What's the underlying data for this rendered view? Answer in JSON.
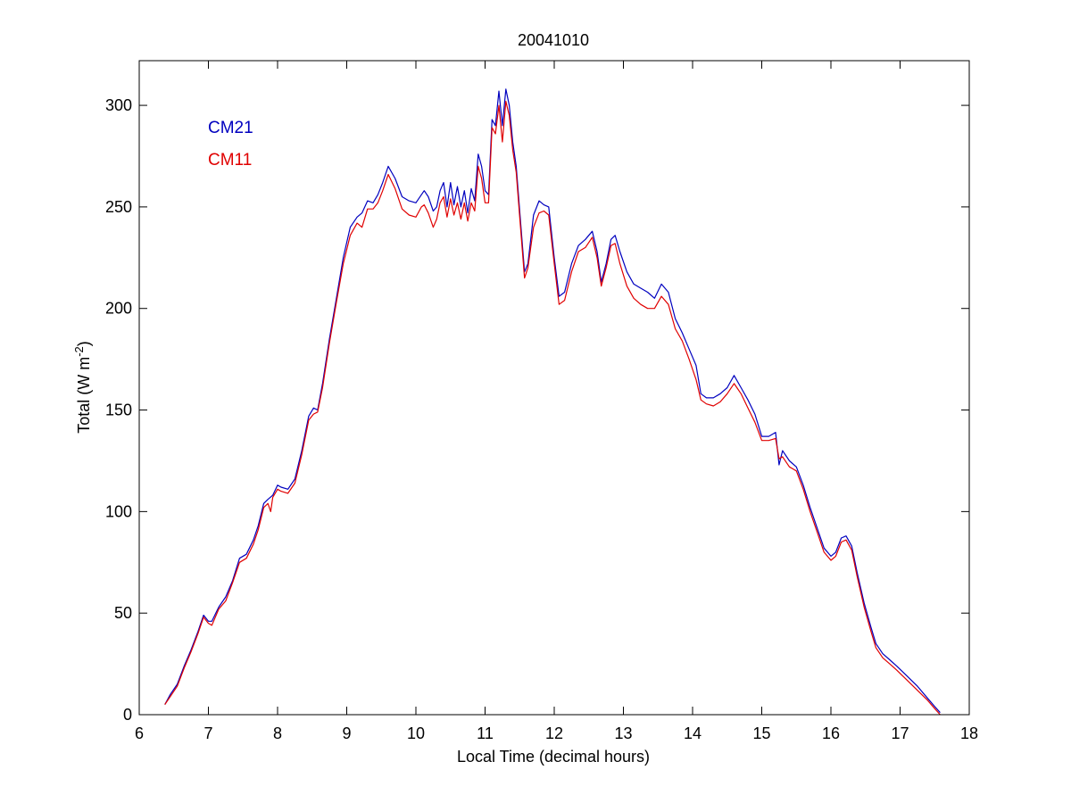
{
  "chart_data": {
    "type": "line",
    "title": "20041010",
    "xlabel": "Local Time (decimal hours)",
    "ylabel": {
      "base": "Total (W m",
      "superscript": "-2",
      "close": ")"
    },
    "xlim": [
      6,
      18
    ],
    "ylim": [
      0,
      322
    ],
    "xticks": [
      6,
      7,
      8,
      9,
      10,
      11,
      12,
      13,
      14,
      15,
      16,
      17,
      18
    ],
    "yticks": [
      0,
      50,
      100,
      150,
      200,
      250,
      300
    ],
    "grid": false,
    "legend_position": "top-left",
    "series": [
      {
        "name": "CM21",
        "color": "#0000bf",
        "points": [
          [
            6.37,
            5
          ],
          [
            6.45,
            10
          ],
          [
            6.55,
            15
          ],
          [
            6.65,
            24
          ],
          [
            6.75,
            32
          ],
          [
            6.85,
            41
          ],
          [
            6.93,
            49
          ],
          [
            7.0,
            46
          ],
          [
            7.05,
            46
          ],
          [
            7.15,
            53
          ],
          [
            7.25,
            58
          ],
          [
            7.35,
            66
          ],
          [
            7.45,
            77
          ],
          [
            7.55,
            79
          ],
          [
            7.65,
            86
          ],
          [
            7.72,
            93
          ],
          [
            7.8,
            104
          ],
          [
            7.86,
            106
          ],
          [
            7.93,
            108
          ],
          [
            8.0,
            113
          ],
          [
            8.05,
            112
          ],
          [
            8.15,
            111
          ],
          [
            8.25,
            116
          ],
          [
            8.35,
            130
          ],
          [
            8.45,
            147
          ],
          [
            8.52,
            151
          ],
          [
            8.58,
            150
          ],
          [
            8.65,
            163
          ],
          [
            8.75,
            185
          ],
          [
            8.85,
            205
          ],
          [
            8.95,
            225
          ],
          [
            9.05,
            240
          ],
          [
            9.15,
            245
          ],
          [
            9.22,
            247
          ],
          [
            9.3,
            253
          ],
          [
            9.38,
            252
          ],
          [
            9.45,
            256
          ],
          [
            9.52,
            262
          ],
          [
            9.6,
            270
          ],
          [
            9.7,
            264
          ],
          [
            9.8,
            255
          ],
          [
            9.9,
            253
          ],
          [
            10.0,
            252
          ],
          [
            10.08,
            256
          ],
          [
            10.12,
            258
          ],
          [
            10.18,
            255
          ],
          [
            10.25,
            248
          ],
          [
            10.3,
            250
          ],
          [
            10.35,
            258
          ],
          [
            10.4,
            262
          ],
          [
            10.45,
            250
          ],
          [
            10.5,
            262
          ],
          [
            10.55,
            251
          ],
          [
            10.6,
            260
          ],
          [
            10.65,
            250
          ],
          [
            10.7,
            258
          ],
          [
            10.75,
            247
          ],
          [
            10.8,
            259
          ],
          [
            10.85,
            253
          ],
          [
            10.9,
            276
          ],
          [
            10.95,
            270
          ],
          [
            11.0,
            258
          ],
          [
            11.05,
            256
          ],
          [
            11.1,
            293
          ],
          [
            11.15,
            290
          ],
          [
            11.2,
            307
          ],
          [
            11.25,
            290
          ],
          [
            11.3,
            308
          ],
          [
            11.35,
            300
          ],
          [
            11.4,
            282
          ],
          [
            11.45,
            270
          ],
          [
            11.5,
            248
          ],
          [
            11.57,
            218
          ],
          [
            11.62,
            222
          ],
          [
            11.7,
            246
          ],
          [
            11.78,
            253
          ],
          [
            11.85,
            251
          ],
          [
            11.92,
            250
          ],
          [
            12.0,
            225
          ],
          [
            12.07,
            206
          ],
          [
            12.15,
            208
          ],
          [
            12.25,
            222
          ],
          [
            12.35,
            231
          ],
          [
            12.45,
            234
          ],
          [
            12.55,
            238
          ],
          [
            12.62,
            228
          ],
          [
            12.68,
            213
          ],
          [
            12.75,
            222
          ],
          [
            12.82,
            234
          ],
          [
            12.88,
            236
          ],
          [
            12.95,
            228
          ],
          [
            13.05,
            218
          ],
          [
            13.15,
            212
          ],
          [
            13.25,
            210
          ],
          [
            13.35,
            208
          ],
          [
            13.45,
            205
          ],
          [
            13.55,
            212
          ],
          [
            13.65,
            208
          ],
          [
            13.75,
            195
          ],
          [
            13.85,
            188
          ],
          [
            13.95,
            180
          ],
          [
            14.05,
            172
          ],
          [
            14.12,
            158
          ],
          [
            14.2,
            156
          ],
          [
            14.3,
            156
          ],
          [
            14.4,
            158
          ],
          [
            14.5,
            161
          ],
          [
            14.6,
            167
          ],
          [
            14.7,
            161
          ],
          [
            14.8,
            155
          ],
          [
            14.9,
            148
          ],
          [
            15.0,
            137
          ],
          [
            15.1,
            137
          ],
          [
            15.2,
            139
          ],
          [
            15.25,
            123
          ],
          [
            15.3,
            130
          ],
          [
            15.4,
            125
          ],
          [
            15.5,
            122
          ],
          [
            15.6,
            113
          ],
          [
            15.7,
            102
          ],
          [
            15.8,
            92
          ],
          [
            15.9,
            82
          ],
          [
            16.0,
            78
          ],
          [
            16.07,
            80
          ],
          [
            16.15,
            87
          ],
          [
            16.22,
            88
          ],
          [
            16.3,
            83
          ],
          [
            16.38,
            70
          ],
          [
            16.48,
            55
          ],
          [
            16.58,
            43
          ],
          [
            16.65,
            35
          ],
          [
            16.75,
            30
          ],
          [
            16.85,
            27
          ],
          [
            16.95,
            24
          ],
          [
            17.1,
            19
          ],
          [
            17.25,
            14
          ],
          [
            17.4,
            8
          ],
          [
            17.5,
            4
          ],
          [
            17.58,
            1
          ]
        ]
      },
      {
        "name": "CM11",
        "color": "#e00000",
        "points": [
          [
            6.37,
            5
          ],
          [
            6.45,
            9
          ],
          [
            6.55,
            14
          ],
          [
            6.65,
            23
          ],
          [
            6.75,
            31
          ],
          [
            6.85,
            40
          ],
          [
            6.93,
            48
          ],
          [
            7.0,
            45
          ],
          [
            7.05,
            44
          ],
          [
            7.15,
            52
          ],
          [
            7.25,
            56
          ],
          [
            7.35,
            65
          ],
          [
            7.45,
            75
          ],
          [
            7.55,
            77
          ],
          [
            7.65,
            84
          ],
          [
            7.72,
            91
          ],
          [
            7.8,
            102
          ],
          [
            7.86,
            104
          ],
          [
            7.9,
            100
          ],
          [
            7.93,
            107
          ],
          [
            8.0,
            111
          ],
          [
            8.05,
            110
          ],
          [
            8.15,
            109
          ],
          [
            8.25,
            114
          ],
          [
            8.35,
            128
          ],
          [
            8.45,
            145
          ],
          [
            8.52,
            148
          ],
          [
            8.58,
            149
          ],
          [
            8.65,
            161
          ],
          [
            8.75,
            183
          ],
          [
            8.85,
            203
          ],
          [
            8.95,
            222
          ],
          [
            9.05,
            236
          ],
          [
            9.15,
            242
          ],
          [
            9.22,
            240
          ],
          [
            9.3,
            249
          ],
          [
            9.38,
            249
          ],
          [
            9.45,
            252
          ],
          [
            9.52,
            258
          ],
          [
            9.6,
            266
          ],
          [
            9.7,
            259
          ],
          [
            9.8,
            249
          ],
          [
            9.9,
            246
          ],
          [
            10.0,
            245
          ],
          [
            10.08,
            250
          ],
          [
            10.12,
            251
          ],
          [
            10.18,
            247
          ],
          [
            10.25,
            240
          ],
          [
            10.3,
            244
          ],
          [
            10.35,
            252
          ],
          [
            10.4,
            255
          ],
          [
            10.45,
            245
          ],
          [
            10.5,
            254
          ],
          [
            10.55,
            246
          ],
          [
            10.6,
            252
          ],
          [
            10.65,
            244
          ],
          [
            10.7,
            252
          ],
          [
            10.75,
            243
          ],
          [
            10.8,
            252
          ],
          [
            10.85,
            248
          ],
          [
            10.9,
            270
          ],
          [
            10.95,
            264
          ],
          [
            11.0,
            252
          ],
          [
            11.05,
            252
          ],
          [
            11.1,
            289
          ],
          [
            11.15,
            286
          ],
          [
            11.2,
            300
          ],
          [
            11.25,
            282
          ],
          [
            11.3,
            302
          ],
          [
            11.35,
            295
          ],
          [
            11.4,
            278
          ],
          [
            11.45,
            267
          ],
          [
            11.5,
            245
          ],
          [
            11.57,
            215
          ],
          [
            11.62,
            220
          ],
          [
            11.7,
            240
          ],
          [
            11.78,
            247
          ],
          [
            11.85,
            248
          ],
          [
            11.92,
            246
          ],
          [
            12.0,
            222
          ],
          [
            12.07,
            202
          ],
          [
            12.15,
            204
          ],
          [
            12.25,
            218
          ],
          [
            12.35,
            228
          ],
          [
            12.45,
            230
          ],
          [
            12.55,
            235
          ],
          [
            12.62,
            225
          ],
          [
            12.68,
            211
          ],
          [
            12.75,
            220
          ],
          [
            12.82,
            231
          ],
          [
            12.88,
            232
          ],
          [
            12.95,
            222
          ],
          [
            13.05,
            211
          ],
          [
            13.15,
            205
          ],
          [
            13.25,
            202
          ],
          [
            13.35,
            200
          ],
          [
            13.45,
            200
          ],
          [
            13.55,
            206
          ],
          [
            13.65,
            202
          ],
          [
            13.75,
            190
          ],
          [
            13.85,
            184
          ],
          [
            13.95,
            175
          ],
          [
            14.05,
            165
          ],
          [
            14.12,
            155
          ],
          [
            14.2,
            153
          ],
          [
            14.3,
            152
          ],
          [
            14.4,
            154
          ],
          [
            14.5,
            158
          ],
          [
            14.6,
            163
          ],
          [
            14.7,
            158
          ],
          [
            14.8,
            151
          ],
          [
            14.9,
            144
          ],
          [
            15.0,
            135
          ],
          [
            15.1,
            135
          ],
          [
            15.2,
            136
          ],
          [
            15.25,
            126
          ],
          [
            15.3,
            127
          ],
          [
            15.4,
            122
          ],
          [
            15.5,
            120
          ],
          [
            15.6,
            111
          ],
          [
            15.7,
            100
          ],
          [
            15.8,
            90
          ],
          [
            15.9,
            80
          ],
          [
            16.0,
            76
          ],
          [
            16.07,
            78
          ],
          [
            16.15,
            85
          ],
          [
            16.22,
            86
          ],
          [
            16.3,
            81
          ],
          [
            16.38,
            68
          ],
          [
            16.48,
            53
          ],
          [
            16.58,
            41
          ],
          [
            16.65,
            33
          ],
          [
            16.75,
            28
          ],
          [
            16.85,
            25
          ],
          [
            16.95,
            22
          ],
          [
            17.1,
            17
          ],
          [
            17.25,
            12
          ],
          [
            17.4,
            7
          ],
          [
            17.5,
            3
          ],
          [
            17.58,
            0
          ]
        ]
      }
    ]
  }
}
